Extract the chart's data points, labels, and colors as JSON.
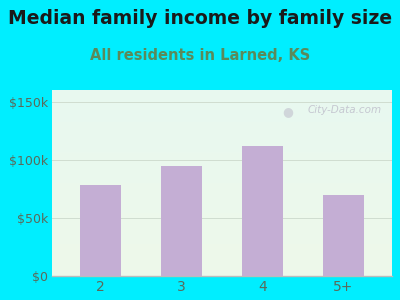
{
  "title": "Median family income by family size",
  "subtitle": "All residents in Larned, KS",
  "categories": [
    "2",
    "3",
    "4",
    "5+"
  ],
  "values": [
    78000,
    95000,
    112000,
    70000
  ],
  "bar_color": "#c4aed4",
  "title_fontsize": 13.5,
  "subtitle_fontsize": 10.5,
  "subtitle_color": "#5a8a5a",
  "title_color": "#1a1a1a",
  "tick_color": "#5a6a5a",
  "ylim": [
    0,
    160000
  ],
  "yticks": [
    0,
    50000,
    100000,
    150000
  ],
  "ytick_labels": [
    "$0",
    "$50k",
    "$100k",
    "$150k"
  ],
  "bg_outer": "#00eeff",
  "bg_plot_top": "#e8f8f0",
  "bg_plot_bottom": "#eef8ea",
  "grid_color": "#d0ddd0",
  "watermark": "City-Data.com",
  "watermark_color": "#c0c0cc",
  "axis_color": "#bbbbbb"
}
